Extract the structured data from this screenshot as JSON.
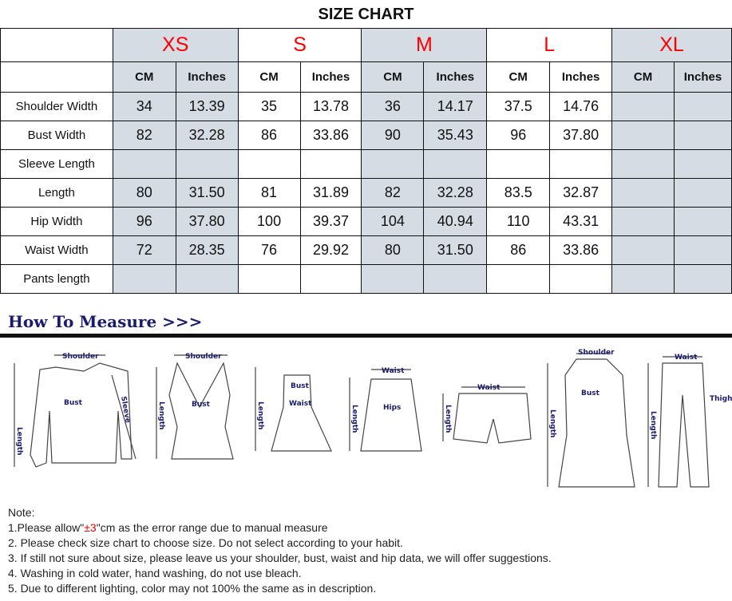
{
  "title": "SIZE CHART",
  "sizes": [
    {
      "name": "XS",
      "color": "#ff0000",
      "shaded": true
    },
    {
      "name": "S",
      "shaded": false
    },
    {
      "name": "M",
      "shaded": true
    },
    {
      "name": "L",
      "shaded": false
    },
    {
      "name": "XL",
      "shaded": true
    }
  ],
  "units": [
    "CM",
    "Inches"
  ],
  "rows": [
    {
      "label": "Shoulder Width",
      "values": [
        "34",
        "13.39",
        "35",
        "13.78",
        "36",
        "14.17",
        "37.5",
        "14.76",
        "",
        ""
      ]
    },
    {
      "label": "Bust Width",
      "values": [
        "82",
        "32.28",
        "86",
        "33.86",
        "90",
        "35.43",
        "96",
        "37.80",
        "",
        ""
      ]
    },
    {
      "label": "Sleeve Length",
      "values": [
        "",
        "",
        "",
        "",
        "",
        "",
        "",
        "",
        "",
        ""
      ]
    },
    {
      "label": "Length",
      "values": [
        "80",
        "31.50",
        "81",
        "31.89",
        "82",
        "32.28",
        "83.5",
        "32.87",
        "",
        ""
      ]
    },
    {
      "label": "Hip Width",
      "values": [
        "96",
        "37.80",
        "100",
        "39.37",
        "104",
        "40.94",
        "110",
        "43.31",
        "",
        ""
      ]
    },
    {
      "label": "Waist Width",
      "values": [
        "72",
        "28.35",
        "76",
        "29.92",
        "80",
        "31.50",
        "86",
        "33.86",
        "",
        ""
      ]
    },
    {
      "label": "Pants length",
      "values": [
        "",
        "",
        "",
        "",
        "",
        "",
        "",
        "",
        "",
        ""
      ]
    }
  ],
  "measure": {
    "heading": "How To Measure >>>",
    "labels": {
      "shoulder": "Shoulder",
      "bust": "Bust",
      "length": "Length",
      "sleeve": "Sleeve",
      "waist": "Waist",
      "hips": "Hips",
      "thigh": "Thigh"
    }
  },
  "notes": {
    "heading": "Note:",
    "n1_pre": "1.Please allow\"",
    "n1_red": "±3",
    "n1_post": "\"cm as the error range due to manual measure",
    "items": [
      "2. Please check size chart to choose size. Do not select according to your habit.",
      "3. If still not sure about size, please leave us your shoulder, bust, waist and hip data, we will offer suggestions.",
      "4. Washing in cold water, hand washing, do not use bleach.",
      "5. Due to different lighting, color may not 100% the same as in description."
    ]
  }
}
